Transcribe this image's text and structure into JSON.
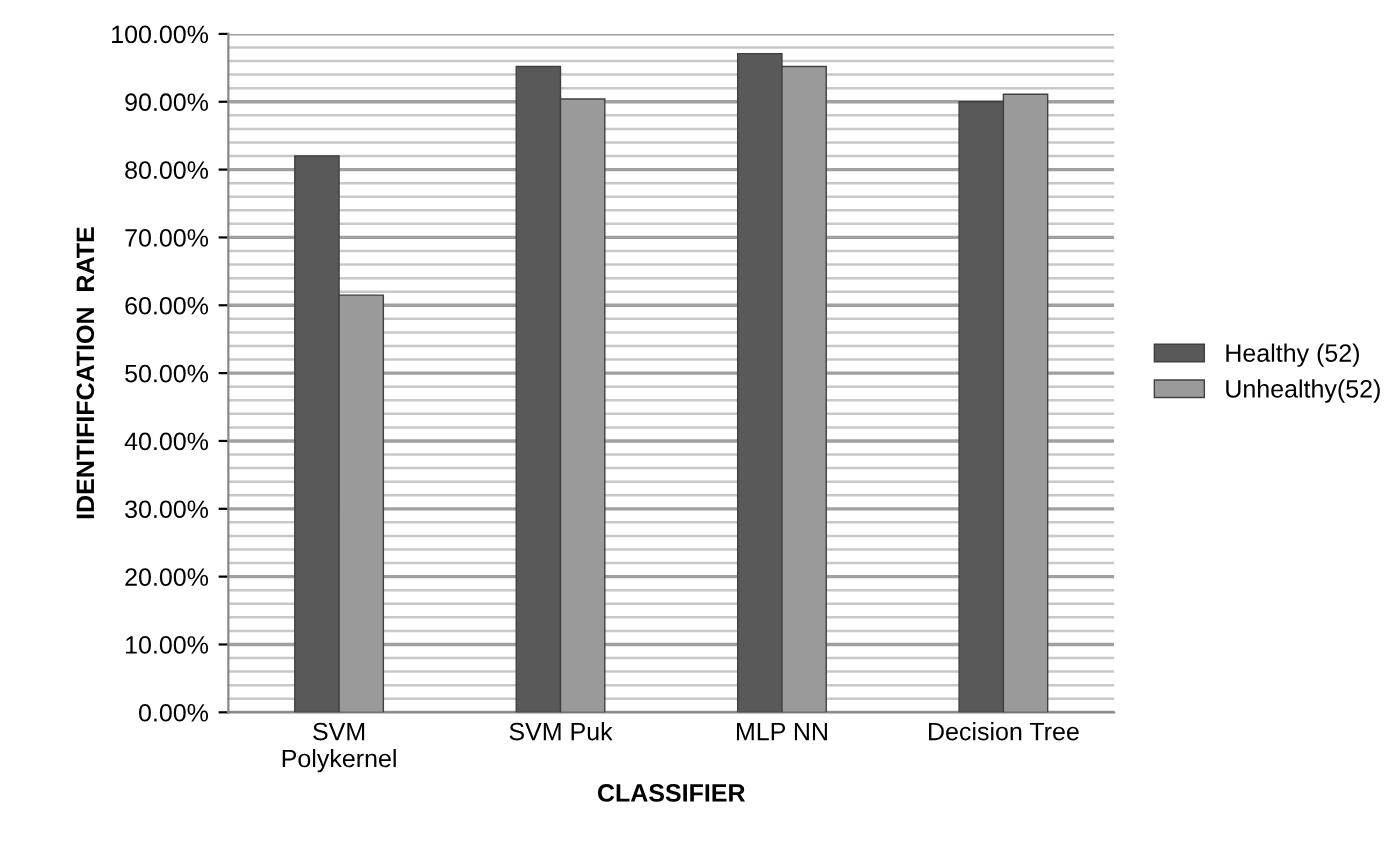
{
  "chart_data": {
    "type": "bar",
    "xlabel": "CLASSIFIER",
    "ylabel": "IDENTIFIFCATION  RATE",
    "categories": [
      "SVM\nPolykernel",
      "SVM Puk",
      "MLP NN",
      "Decision Tree"
    ],
    "series": [
      {
        "name": "Healthy (52)",
        "color": "#595959",
        "values": [
          82,
          95.2,
          97.1,
          90
        ]
      },
      {
        "name": "Unhealthy(52)",
        "color": "#9a9a9a",
        "values": [
          61.5,
          90.4,
          95.2,
          91.1
        ]
      }
    ],
    "ylim": [
      0,
      100
    ],
    "yticks": [
      {
        "value": 0,
        "label": "0.00%"
      },
      {
        "value": 2,
        "label": null
      },
      {
        "value": 4,
        "label": null
      },
      {
        "value": 6,
        "label": null
      },
      {
        "value": 8,
        "label": null
      },
      {
        "value": 10,
        "label": "10.00%"
      },
      {
        "value": 12,
        "label": null
      },
      {
        "value": 14,
        "label": null
      },
      {
        "value": 16,
        "label": null
      },
      {
        "value": 18,
        "label": null
      },
      {
        "value": 20,
        "label": "20.00%"
      },
      {
        "value": 22,
        "label": null
      },
      {
        "value": 24,
        "label": null
      },
      {
        "value": 26,
        "label": null
      },
      {
        "value": 28,
        "label": null
      },
      {
        "value": 30,
        "label": "30.00%"
      },
      {
        "value": 32,
        "label": null
      },
      {
        "value": 34,
        "label": null
      },
      {
        "value": 36,
        "label": null
      },
      {
        "value": 38,
        "label": null
      },
      {
        "value": 40,
        "label": "40.00%"
      },
      {
        "value": 42,
        "label": null
      },
      {
        "value": 44,
        "label": null
      },
      {
        "value": 46,
        "label": null
      },
      {
        "value": 48,
        "label": null
      },
      {
        "value": 50,
        "label": "50.00%"
      },
      {
        "value": 52,
        "label": null
      },
      {
        "value": 54,
        "label": null
      },
      {
        "value": 56,
        "label": null
      },
      {
        "value": 58,
        "label": null
      },
      {
        "value": 60,
        "label": "60.00%"
      },
      {
        "value": 62,
        "label": null
      },
      {
        "value": 64,
        "label": null
      },
      {
        "value": 66,
        "label": null
      },
      {
        "value": 68,
        "label": null
      },
      {
        "value": 70,
        "label": "70.00%"
      },
      {
        "value": 72,
        "label": null
      },
      {
        "value": 74,
        "label": null
      },
      {
        "value": 76,
        "label": null
      },
      {
        "value": 78,
        "label": null
      },
      {
        "value": 80,
        "label": "80.00%"
      },
      {
        "value": 82,
        "label": null
      },
      {
        "value": 84,
        "label": null
      },
      {
        "value": 86,
        "label": null
      },
      {
        "value": 88,
        "label": null
      },
      {
        "value": 90,
        "label": "90.00%"
      },
      {
        "value": 92,
        "label": null
      },
      {
        "value": 94,
        "label": null
      },
      {
        "value": 96,
        "label": null
      },
      {
        "value": 98,
        "label": null
      },
      {
        "value": 100,
        "label": "100.00%"
      }
    ],
    "grid": "y",
    "legend": "right"
  }
}
